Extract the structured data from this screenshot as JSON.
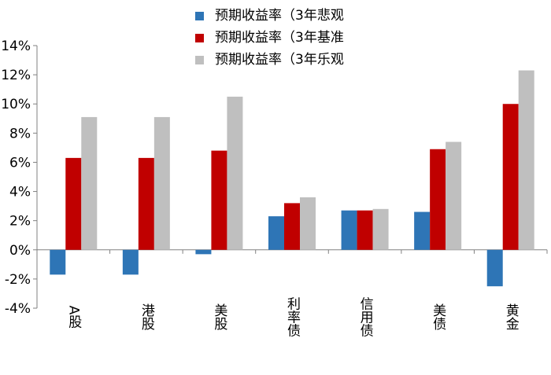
{
  "chart_data": {
    "type": "bar",
    "title": "",
    "xlabel": "",
    "ylabel": "",
    "categories": [
      "A股",
      "港股",
      "美股",
      "利率债",
      "信用债",
      "美债",
      "黄金"
    ],
    "series": [
      {
        "name": "预期收益率（3年悲观",
        "color": "#2e75b6",
        "values": [
          -1.7,
          -1.7,
          -0.3,
          2.3,
          2.7,
          2.6,
          -2.5
        ]
      },
      {
        "name": "预期收益率（3年基准",
        "color": "#c00000",
        "values": [
          6.3,
          6.3,
          6.8,
          3.2,
          2.7,
          6.9,
          10.0
        ]
      },
      {
        "name": "预期收益率（3年乐观",
        "color": "#bfbfbf",
        "values": [
          9.1,
          9.1,
          10.5,
          3.6,
          2.8,
          7.4,
          12.3
        ]
      }
    ],
    "ylim": [
      -4,
      14
    ],
    "yticks": [
      "-4%",
      "-2%",
      "0%",
      "2%",
      "4%",
      "6%",
      "8%",
      "10%",
      "12%",
      "14%"
    ],
    "ytick_values": [
      -4,
      -2,
      0,
      2,
      4,
      6,
      8,
      10,
      12,
      14
    ],
    "grid": false,
    "legend_position": "top-center"
  }
}
